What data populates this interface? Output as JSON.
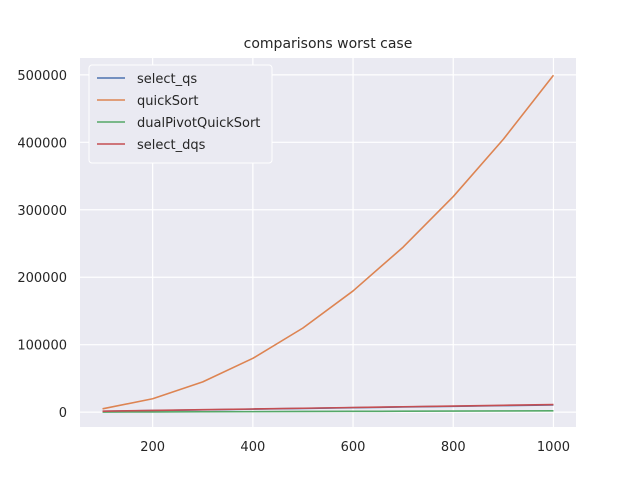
{
  "chart_data": {
    "type": "line",
    "title": "comparisons worst case",
    "xlabel": "",
    "ylabel": "",
    "x": [
      100,
      200,
      300,
      400,
      500,
      600,
      700,
      800,
      900,
      1000
    ],
    "xlim": [
      55,
      1045
    ],
    "ylim": [
      -22000,
      525000
    ],
    "xticks": [
      200,
      400,
      600,
      800,
      1000
    ],
    "xtick_labels": [
      "200",
      "400",
      "600",
      "800",
      "1000"
    ],
    "yticks": [
      0,
      100000,
      200000,
      300000,
      400000,
      500000
    ],
    "ytick_labels": [
      "0",
      "100000",
      "200000",
      "300000",
      "400000",
      "500000"
    ],
    "grid": true,
    "legend_position": "top-left",
    "background": "#eaeaf2",
    "series": [
      {
        "name": "select_qs",
        "color": "#4c72b0",
        "values": [
          1300,
          2400,
          3400,
          4500,
          5500,
          6600,
          7700,
          8700,
          9700,
          10700
        ]
      },
      {
        "name": "quickSort",
        "color": "#dd8452",
        "values": [
          4950,
          19900,
          44850,
          79800,
          124750,
          179700,
          244650,
          319600,
          404550,
          499500
        ]
      },
      {
        "name": "dualPivotQuickSort",
        "color": "#55a868",
        "values": [
          200,
          400,
          600,
          800,
          1000,
          1200,
          1400,
          1600,
          1800,
          2000
        ]
      },
      {
        "name": "select_dqs",
        "color": "#c44e52",
        "values": [
          1400,
          2500,
          3600,
          4700,
          5800,
          6900,
          8000,
          9100,
          10200,
          11300
        ]
      }
    ]
  }
}
